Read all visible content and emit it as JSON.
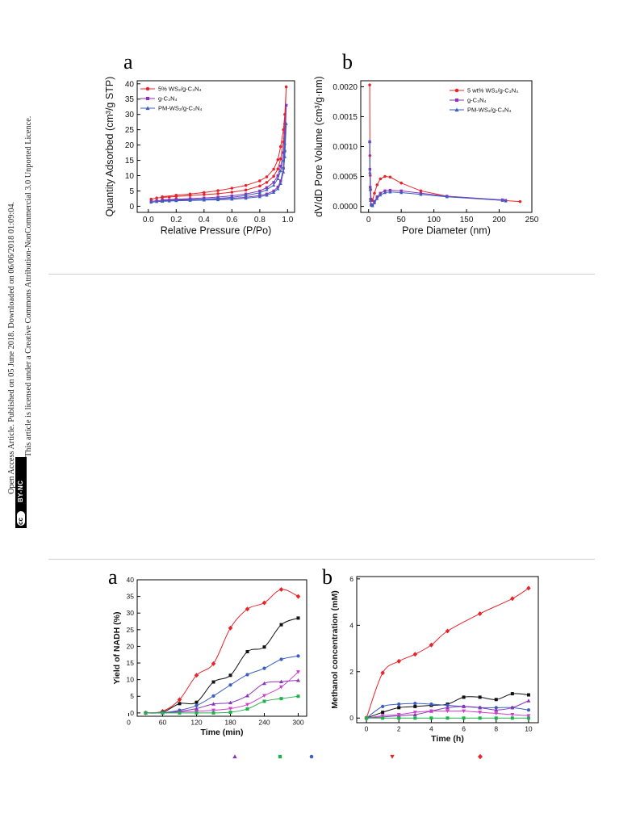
{
  "sidebar": {
    "line1": "Open Access Article. Published on 05 June 2018. Downloaded on 06/06/2018 01:09:04.",
    "line2": "This article is licensed under a Creative Commons Attribution-NonCommercial 3.0 Unported Licence.",
    "badge_cc": "cc",
    "badge_label": "BY-NC"
  },
  "colors": {
    "red": "#e8242a",
    "purple": "#8a35b8",
    "blue": "#3b5fc2",
    "black": "#111111",
    "green": "#1fb24a",
    "magenta": "#cf3fcf"
  },
  "figures": {
    "top_a_letter": "a",
    "top_b_letter": "b",
    "bottom_a_letter": "a",
    "bottom_b_letter": "b"
  },
  "chart_data": [
    {
      "id": "isotherm",
      "type": "line",
      "xlabel": "Relative Pressure (P/Po)",
      "ylabel": "Quantity Adsorbed (cm³/g STP)",
      "xlim": [
        -0.08,
        1.05
      ],
      "ylim": [
        -2,
        41
      ],
      "xticks": [
        "0.0",
        "0.2",
        "0.4",
        "0.6",
        "0.8",
        "1.0"
      ],
      "xtickvals": [
        0,
        0.2,
        0.4,
        0.6,
        0.8,
        1.0
      ],
      "yticks": [
        "0",
        "5",
        "10",
        "15",
        "20",
        "25",
        "30",
        "35",
        "40"
      ],
      "ytickvals": [
        0,
        5,
        10,
        15,
        20,
        25,
        30,
        35,
        40
      ],
      "legend": [
        "5% WS₂/g-C₃N₄",
        "g-C₃N₄",
        "PM-WS₂/g-C₃N₄"
      ],
      "series": [
        {
          "name": "5% WS₂/g-C₃N₄",
          "color": "#e8242a",
          "marker": "circle",
          "x": [
            0.02,
            0.06,
            0.1,
            0.15,
            0.2,
            0.3,
            0.4,
            0.5,
            0.6,
            0.7,
            0.8,
            0.85,
            0.9,
            0.93,
            0.95,
            0.97,
            0.98,
            0.99,
            0.98,
            0.97,
            0.95,
            0.93,
            0.9,
            0.85,
            0.8,
            0.7,
            0.6,
            0.5,
            0.4,
            0.3,
            0.2,
            0.1
          ],
          "y": [
            2.3,
            2.7,
            2.9,
            3.0,
            3.2,
            3.5,
            3.8,
            4.1,
            4.6,
            5.3,
            6.6,
            7.8,
            9.8,
            12.2,
            15.5,
            21,
            27,
            39,
            30,
            25,
            19.5,
            15.2,
            12.1,
            9.6,
            8.3,
            6.8,
            5.9,
            5.1,
            4.5,
            4.0,
            3.6,
            3.1
          ]
        },
        {
          "name": "g-C₃N₄",
          "color": "#8a35b8",
          "marker": "square",
          "x": [
            0.02,
            0.06,
            0.1,
            0.15,
            0.2,
            0.3,
            0.4,
            0.5,
            0.6,
            0.7,
            0.8,
            0.85,
            0.9,
            0.93,
            0.95,
            0.97,
            0.98,
            0.99,
            0.98,
            0.97,
            0.95,
            0.93,
            0.9,
            0.85,
            0.8,
            0.7,
            0.6,
            0.5,
            0.4,
            0.3,
            0.2,
            0.1
          ],
          "y": [
            1.6,
            1.8,
            1.9,
            2.0,
            2.1,
            2.2,
            2.3,
            2.4,
            2.6,
            2.9,
            3.5,
            4.0,
            5.0,
            6.3,
            8.3,
            12.4,
            18.0,
            33,
            24,
            17.5,
            13.1,
            10.0,
            7.8,
            6.1,
            5.0,
            4.0,
            3.4,
            3.0,
            2.7,
            2.5,
            2.3,
            2.1
          ]
        },
        {
          "name": "PM-WS₂/g-C₃N₄",
          "color": "#3b5fc2",
          "marker": "triangle",
          "x": [
            0.02,
            0.06,
            0.1,
            0.15,
            0.2,
            0.3,
            0.4,
            0.5,
            0.6,
            0.7,
            0.8,
            0.85,
            0.9,
            0.93,
            0.95,
            0.97,
            0.98,
            0.99,
            0.98,
            0.97,
            0.95,
            0.93,
            0.9,
            0.85,
            0.8,
            0.7,
            0.6,
            0.5,
            0.4,
            0.3,
            0.2,
            0.1
          ],
          "y": [
            1.3,
            1.5,
            1.6,
            1.7,
            1.8,
            1.9,
            2.0,
            2.1,
            2.3,
            2.6,
            3.1,
            3.6,
            4.5,
            5.7,
            7.4,
            11.2,
            16.2,
            27,
            20.5,
            15.0,
            11.6,
            9.0,
            6.9,
            5.4,
            4.4,
            3.5,
            2.9,
            2.6,
            2.3,
            2.1,
            1.9,
            1.7
          ]
        }
      ]
    },
    {
      "id": "pore",
      "type": "line",
      "xlabel": "Pore Diameter (nm)",
      "ylabel": "dV/dD Pore Volume (cm³/g·nm)",
      "xlim": [
        -12,
        250
      ],
      "ylim": [
        -0.0001,
        0.0021
      ],
      "xticks": [
        "0",
        "50",
        "100",
        "150",
        "200",
        "250"
      ],
      "xtickvals": [
        0,
        50,
        100,
        150,
        200,
        250
      ],
      "yticks": [
        "0.0000",
        "0.0005",
        "0.0010",
        "0.0015",
        "0.0020"
      ],
      "ytickvals": [
        0,
        0.0005,
        0.001,
        0.0015,
        0.002
      ],
      "legend": [
        "5 wt% WS₂/g-C₃N₄",
        "g-C₃N₄",
        "PM-WS₂/g-C₃N₄"
      ],
      "series": [
        {
          "name": "5 wt% WS₂/g-C₃N₄",
          "color": "#e8242a",
          "marker": "circle",
          "x": [
            1.7,
            2.0,
            2.5,
            3,
            4,
            6,
            9,
            13,
            18,
            25,
            33,
            50,
            80,
            120,
            205,
            232
          ],
          "y": [
            0.00203,
            0.00085,
            0.00052,
            0.00028,
            0.00012,
            0.0001,
            0.00022,
            0.00036,
            0.00046,
            0.0005,
            0.00049,
            0.00039,
            0.00026,
            0.00017,
            0.0001,
            8e-05
          ]
        },
        {
          "name": "g-C₃N₄",
          "color": "#8a35b8",
          "marker": "square",
          "x": [
            1.7,
            2.0,
            2.5,
            3,
            4,
            6,
            9,
            13,
            18,
            25,
            33,
            50,
            80,
            120,
            205,
            210
          ],
          "y": [
            0.00108,
            0.00062,
            0.00032,
            0.00012,
            3e-05,
            2e-05,
            8e-05,
            0.00016,
            0.00022,
            0.00026,
            0.00027,
            0.00026,
            0.00022,
            0.00017,
            0.00011,
            0.0001
          ]
        },
        {
          "name": "PM-WS₂/g-C₃N₄",
          "color": "#3b5fc2",
          "marker": "triangle",
          "x": [
            1.7,
            2.0,
            2.5,
            3,
            4,
            6,
            9,
            13,
            18,
            25,
            33,
            50,
            80,
            120,
            205,
            210
          ],
          "y": [
            0.00109,
            0.00057,
            0.00028,
            0.0001,
            2e-05,
            1e-05,
            6e-05,
            0.00013,
            0.00019,
            0.00023,
            0.00024,
            0.00023,
            0.0002,
            0.00016,
            0.0001,
            9e-05
          ]
        }
      ]
    },
    {
      "id": "nadh",
      "type": "line",
      "xlabel": "Time (min)",
      "ylabel": "Yield of NADH (%)",
      "xlim": [
        15,
        315
      ],
      "ylim": [
        -1,
        40
      ],
      "xticks": [
        "0",
        "60",
        "120",
        "180",
        "240",
        "300"
      ],
      "xtickvals": [
        0,
        60,
        120,
        180,
        240,
        300
      ],
      "yticks": [
        "0",
        "5",
        "10",
        "15",
        "20",
        "25",
        "30",
        "35",
        "40"
      ],
      "ytickvals": [
        0,
        5,
        10,
        15,
        20,
        25,
        30,
        35,
        40
      ],
      "legend_markers": [
        "triangle",
        "square",
        "circle",
        "down-triangle",
        "diamond"
      ],
      "series": [
        {
          "color": "#e8242a",
          "marker": "diamond",
          "x": [
            30,
            60,
            90,
            120,
            150,
            180,
            210,
            240,
            270,
            300
          ],
          "y": [
            0,
            0.5,
            4,
            11.3,
            14.8,
            25.5,
            31.2,
            33.1,
            37.1,
            35
          ]
        },
        {
          "color": "#111111",
          "marker": "square",
          "x": [
            30,
            60,
            90,
            120,
            150,
            180,
            210,
            240,
            270,
            300
          ],
          "y": [
            0,
            0.2,
            2.8,
            3.2,
            9.3,
            11.3,
            18.4,
            19.8,
            26.5,
            28.5
          ]
        },
        {
          "color": "#3b5fc2",
          "marker": "circle",
          "x": [
            30,
            60,
            90,
            120,
            150,
            180,
            210,
            240,
            270,
            300
          ],
          "y": [
            0,
            0.1,
            0.8,
            2.2,
            5.1,
            8.4,
            11.5,
            13.4,
            16.1,
            17.1
          ]
        },
        {
          "color": "#cf3fcf",
          "marker": "down-triangle",
          "x": [
            30,
            60,
            90,
            120,
            150,
            180,
            210,
            240,
            270,
            300
          ],
          "y": [
            0,
            0,
            0.3,
            0.5,
            0.8,
            1.3,
            2.5,
            5.2,
            7.8,
            12.3
          ]
        },
        {
          "color": "#8a35b8",
          "marker": "triangle",
          "x": [
            30,
            60,
            90,
            120,
            150,
            180,
            210,
            240,
            270,
            300
          ],
          "y": [
            0,
            0,
            0.5,
            1.3,
            2.7,
            3.1,
            5.2,
            8.9,
            9.4,
            9.8
          ]
        },
        {
          "color": "#1fb24a",
          "marker": "square",
          "x": [
            30,
            60,
            90,
            120,
            150,
            180,
            210,
            240,
            270,
            300
          ],
          "y": [
            0,
            0,
            0,
            0,
            0,
            0.2,
            1.2,
            3.5,
            4.3,
            5
          ]
        }
      ]
    },
    {
      "id": "methanol",
      "type": "line",
      "xlabel": "Time (h)",
      "ylabel": "Methanol concentration (mM)",
      "xlim": [
        -0.6,
        10.6
      ],
      "ylim": [
        -0.2,
        6.1
      ],
      "xticks": [
        "0",
        "2",
        "4",
        "6",
        "8",
        "10"
      ],
      "xtickvals": [
        0,
        2,
        4,
        6,
        8,
        10
      ],
      "yticks": [
        "0",
        "2",
        "4",
        "6"
      ],
      "ytickvals": [
        0,
        2,
        4,
        6
      ],
      "series": [
        {
          "color": "#e8242a",
          "marker": "diamond",
          "x": [
            0,
            1,
            2,
            3,
            4,
            5,
            7,
            9,
            10
          ],
          "y": [
            0,
            1.95,
            2.45,
            2.75,
            3.15,
            3.75,
            4.5,
            5.15,
            5.6
          ]
        },
        {
          "color": "#111111",
          "marker": "square",
          "x": [
            0,
            1,
            2,
            3,
            4,
            5,
            6,
            7,
            8,
            9,
            10
          ],
          "y": [
            0,
            0.25,
            0.45,
            0.5,
            0.55,
            0.6,
            0.9,
            0.9,
            0.8,
            1.05,
            1.0
          ]
        },
        {
          "color": "#3b5fc2",
          "marker": "circle",
          "x": [
            0,
            1,
            2,
            3,
            4,
            5,
            6,
            7,
            8,
            9,
            10
          ],
          "y": [
            0,
            0.5,
            0.6,
            0.63,
            0.6,
            0.55,
            0.5,
            0.45,
            0.45,
            0.45,
            0.35
          ]
        },
        {
          "color": "#8a35b8",
          "marker": "triangle",
          "x": [
            0,
            1,
            2,
            3,
            4,
            5,
            6,
            7,
            8,
            9,
            10
          ],
          "y": [
            0,
            0.05,
            0.1,
            0.15,
            0.3,
            0.45,
            0.5,
            0.45,
            0.35,
            0.45,
            0.75
          ]
        },
        {
          "color": "#cf3fcf",
          "marker": "down-triangle",
          "x": [
            0,
            1,
            2,
            3,
            4,
            5,
            6,
            7,
            8,
            9,
            10
          ],
          "y": [
            0,
            0.1,
            0.15,
            0.25,
            0.3,
            0.3,
            0.3,
            0.25,
            0.2,
            0.15,
            0.1
          ]
        },
        {
          "color": "#1fb24a",
          "marker": "square",
          "x": [
            0,
            1,
            2,
            3,
            4,
            5,
            6,
            7,
            8,
            9,
            10
          ],
          "y": [
            0,
            0,
            0,
            0,
            0,
            0,
            0,
            0,
            0,
            0,
            0
          ]
        }
      ]
    }
  ]
}
